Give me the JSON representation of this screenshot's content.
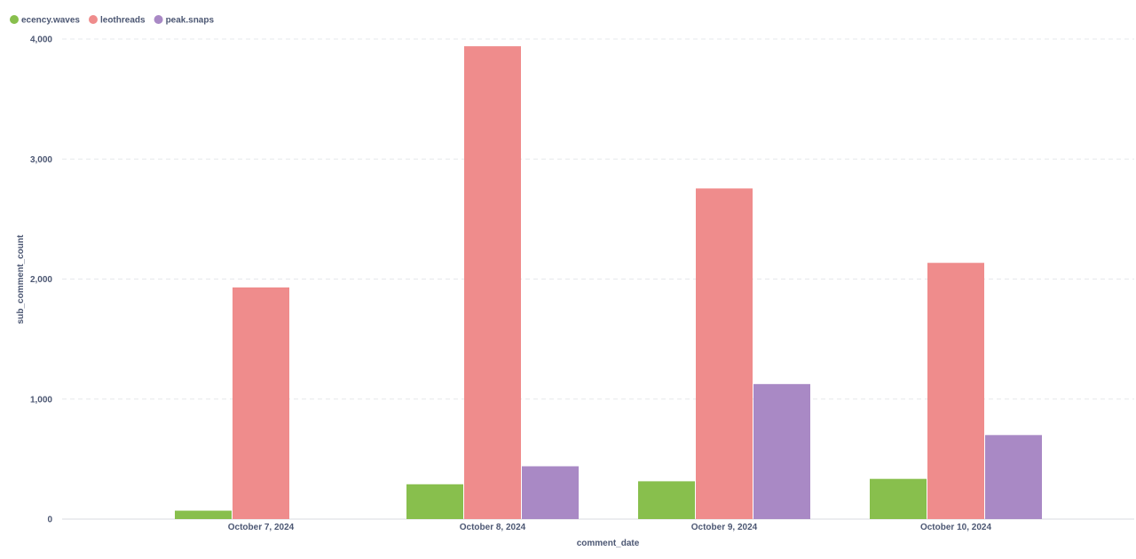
{
  "chart_data": {
    "type": "bar",
    "categories": [
      "October 7, 2024",
      "October 8, 2024",
      "October 9, 2024",
      "October 10, 2024"
    ],
    "series": [
      {
        "name": "ecency.waves",
        "color": "#88bf4d",
        "values": [
          70,
          290,
          315,
          335
        ]
      },
      {
        "name": "leothreads",
        "color": "#ef8c8c",
        "values": [
          1930,
          3940,
          2755,
          2135
        ]
      },
      {
        "name": "peak.snaps",
        "color": "#a989c5",
        "values": [
          null,
          440,
          1125,
          700
        ]
      }
    ],
    "xlabel": "comment_date",
    "ylabel": "sub_comment_count",
    "ylim": [
      0,
      4000
    ],
    "yticks": [
      {
        "value": 0,
        "label": "0"
      },
      {
        "value": 1000,
        "label": "1,000"
      },
      {
        "value": 2000,
        "label": "2,000"
      },
      {
        "value": 3000,
        "label": "3,000"
      },
      {
        "value": 4000,
        "label": "4,000"
      }
    ],
    "grid": true,
    "legend_position": "top-left"
  }
}
